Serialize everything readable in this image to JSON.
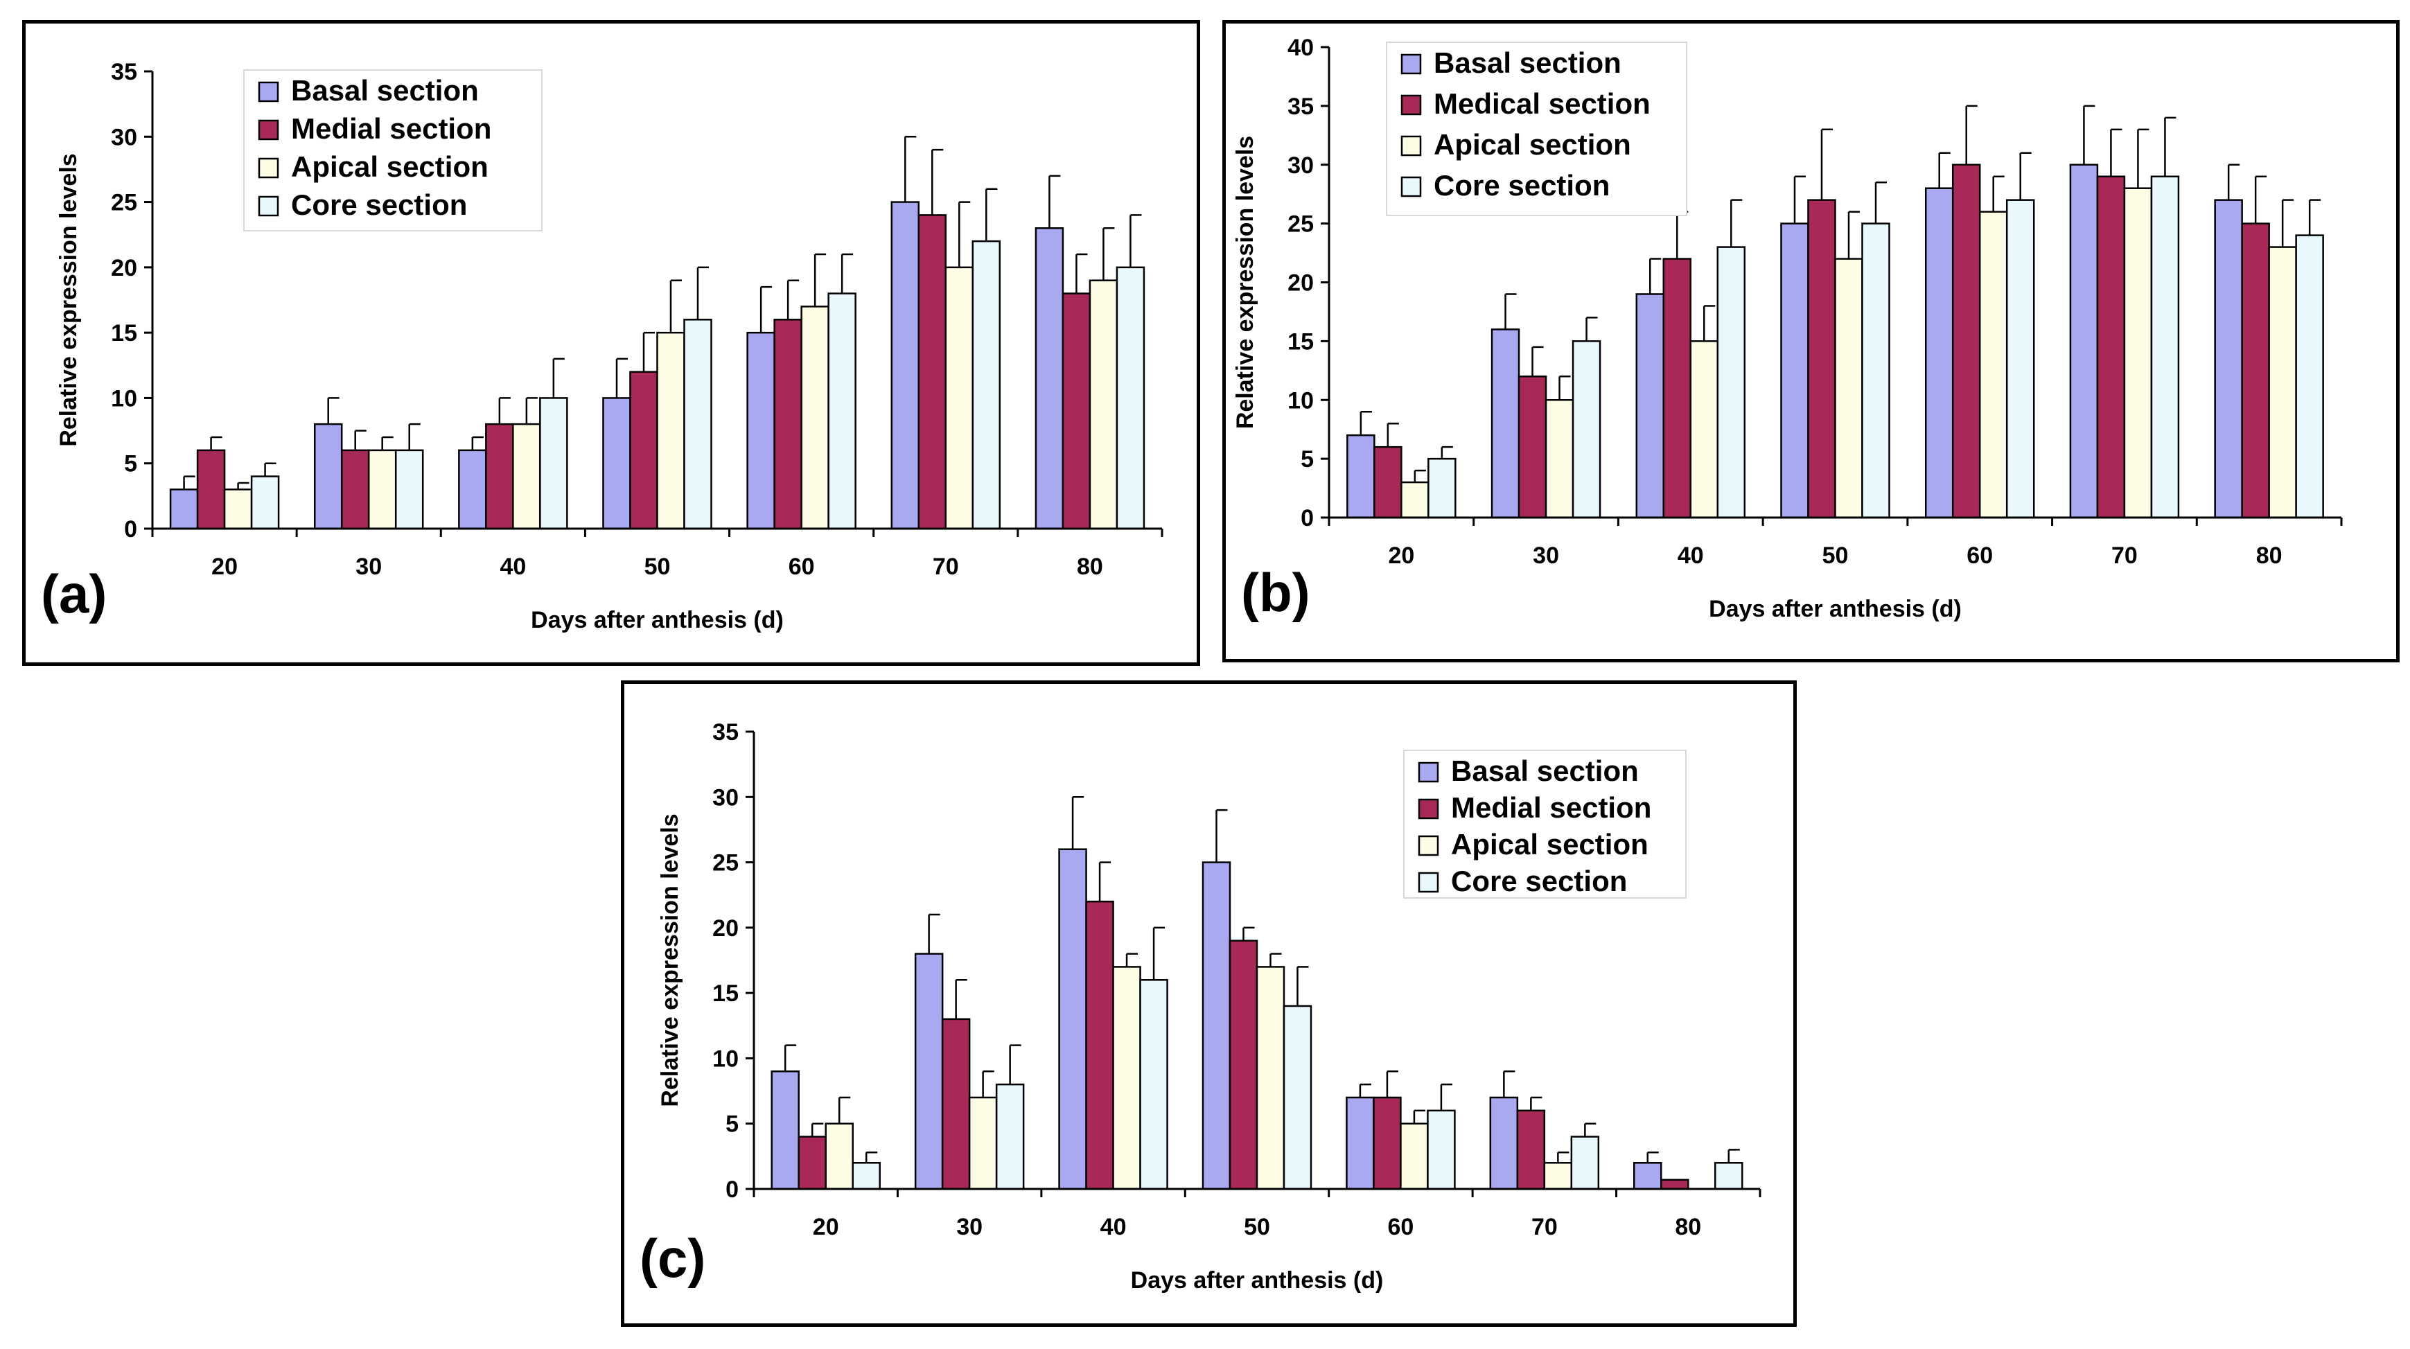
{
  "colors": {
    "basal": "#a9a9f2",
    "medial": "#a82858",
    "apical": "#fdfde6",
    "core": "#e8f8fc",
    "axis": "#000000"
  },
  "chart_data": [
    {
      "type": "bar",
      "panel_label": "(a)",
      "xlabel": "Days after anthesis (d)",
      "ylabel": "Relative expression levels",
      "ylim": [
        0,
        35
      ],
      "yticks": [
        "0",
        "5",
        "10",
        "15",
        "20",
        "25",
        "30",
        "35"
      ],
      "categories": [
        "20",
        "30",
        "40",
        "50",
        "60",
        "70",
        "80"
      ],
      "legend_position": "top-left",
      "series": [
        {
          "name": "Basal section",
          "color_key": "basal",
          "values": [
            3,
            8,
            6,
            10,
            15,
            25,
            23
          ],
          "errors": [
            1,
            2,
            1,
            3,
            3.5,
            5,
            4
          ]
        },
        {
          "name": "Medial section",
          "color_key": "medial",
          "values": [
            6,
            6,
            8,
            12,
            16,
            24,
            18
          ],
          "errors": [
            1,
            1.5,
            2,
            3,
            3,
            5,
            3
          ]
        },
        {
          "name": "Apical section",
          "color_key": "apical",
          "values": [
            3,
            6,
            8,
            15,
            17,
            20,
            19
          ],
          "errors": [
            0.5,
            1,
            2,
            4,
            4,
            5,
            4
          ]
        },
        {
          "name": "Core section",
          "color_key": "core",
          "values": [
            4,
            6,
            10,
            16,
            18,
            22,
            20
          ],
          "errors": [
            1,
            2,
            3,
            4,
            3,
            4,
            4
          ]
        }
      ]
    },
    {
      "type": "bar",
      "panel_label": "(b)",
      "xlabel": "Days after anthesis (d)",
      "ylabel": "Relative expression levels",
      "ylim": [
        0,
        40
      ],
      "yticks": [
        "0",
        "5",
        "10",
        "15",
        "20",
        "25",
        "30",
        "35",
        "40"
      ],
      "categories": [
        "20",
        "30",
        "40",
        "50",
        "60",
        "70",
        "80"
      ],
      "legend_position": "top-left",
      "series": [
        {
          "name": "Basal section",
          "color_key": "basal",
          "values": [
            7,
            16,
            19,
            25,
            28,
            30,
            27
          ],
          "errors": [
            2,
            3,
            3,
            4,
            3,
            5,
            3
          ]
        },
        {
          "name": "Medical section",
          "color_key": "medial",
          "values": [
            6,
            12,
            22,
            27,
            30,
            29,
            25
          ],
          "errors": [
            2,
            2.5,
            4,
            6,
            5,
            4,
            4
          ]
        },
        {
          "name": "Apical section",
          "color_key": "apical",
          "values": [
            3,
            10,
            15,
            22,
            26,
            28,
            23
          ],
          "errors": [
            1,
            2,
            3,
            4,
            3,
            5,
            4
          ]
        },
        {
          "name": "Core section",
          "color_key": "core",
          "values": [
            5,
            15,
            23,
            25,
            27,
            29,
            24
          ],
          "errors": [
            1,
            2,
            4,
            3.5,
            4,
            5,
            3
          ]
        }
      ]
    },
    {
      "type": "bar",
      "panel_label": "(c)",
      "xlabel": "Days after anthesis (d)",
      "ylabel": "Relative expression levels",
      "ylim": [
        0,
        35
      ],
      "yticks": [
        "0",
        "5",
        "10",
        "15",
        "20",
        "25",
        "30",
        "35"
      ],
      "categories": [
        "20",
        "30",
        "40",
        "50",
        "60",
        "70",
        "80"
      ],
      "legend_position": "top-right",
      "series": [
        {
          "name": "Basal section",
          "color_key": "basal",
          "values": [
            9,
            18,
            26,
            25,
            7,
            7,
            2
          ],
          "errors": [
            2,
            3,
            4,
            4,
            1,
            2,
            0.8
          ]
        },
        {
          "name": "Medial section",
          "color_key": "medial",
          "values": [
            4,
            13,
            22,
            19,
            7,
            6,
            0.7
          ],
          "errors": [
            1,
            3,
            3,
            1,
            2,
            1,
            0
          ]
        },
        {
          "name": "Apical section",
          "color_key": "apical",
          "values": [
            5,
            7,
            17,
            17,
            5,
            2,
            0
          ],
          "errors": [
            2,
            2,
            1,
            1,
            1,
            0.8,
            0
          ]
        },
        {
          "name": "Core section",
          "color_key": "core",
          "values": [
            2,
            8,
            16,
            14,
            6,
            4,
            2
          ],
          "errors": [
            0.8,
            3,
            4,
            3,
            2,
            1,
            1
          ]
        }
      ]
    }
  ]
}
